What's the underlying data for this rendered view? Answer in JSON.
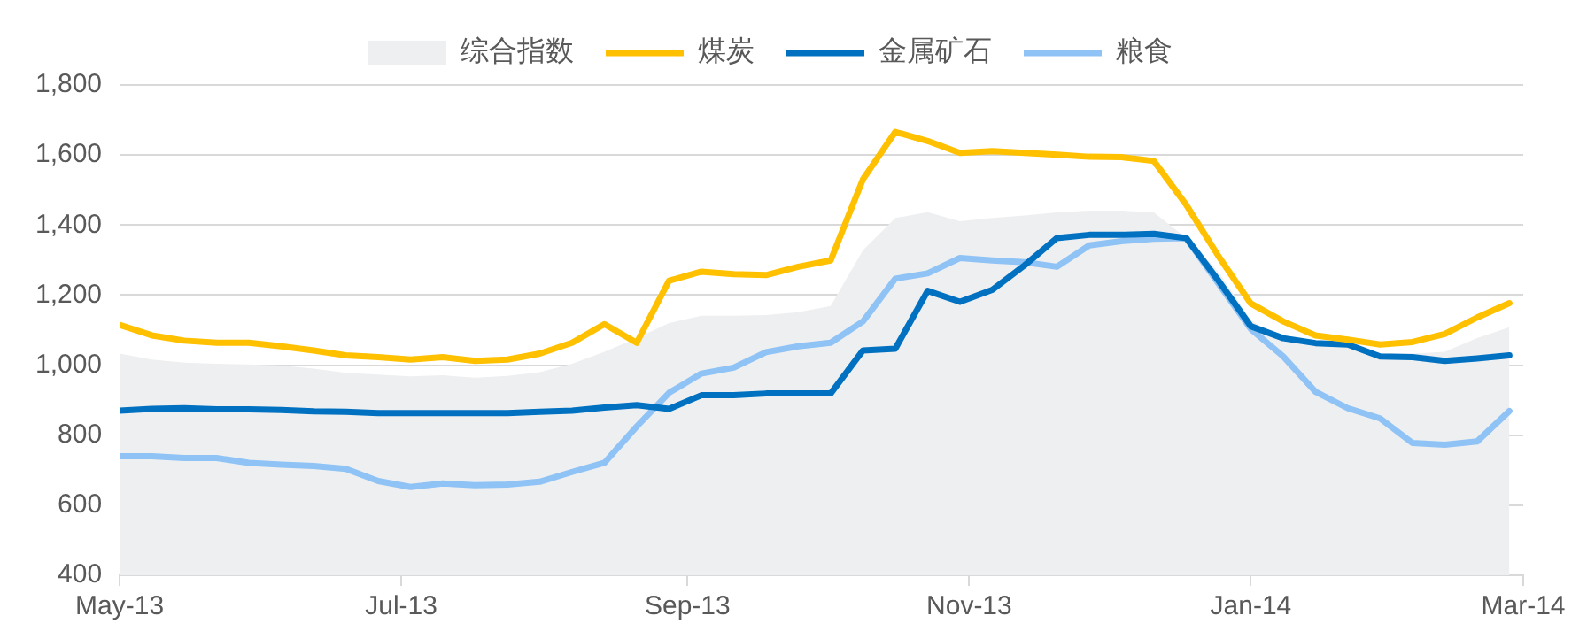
{
  "chart_data": {
    "type": "line",
    "x": [
      "2013-05-01",
      "2013-05-08",
      "2013-05-15",
      "2013-05-22",
      "2013-05-29",
      "2013-06-05",
      "2013-06-12",
      "2013-06-19",
      "2013-06-26",
      "2013-07-03",
      "2013-07-10",
      "2013-07-17",
      "2013-07-24",
      "2013-07-31",
      "2013-08-07",
      "2013-08-14",
      "2013-08-21",
      "2013-08-28",
      "2013-09-04",
      "2013-09-11",
      "2013-09-18",
      "2013-09-25",
      "2013-10-02",
      "2013-10-09",
      "2013-10-16",
      "2013-10-23",
      "2013-10-30",
      "2013-11-06",
      "2013-11-13",
      "2013-11-20",
      "2013-11-27",
      "2013-12-04",
      "2013-12-11",
      "2013-12-18",
      "2013-12-25",
      "2014-01-01",
      "2014-01-08",
      "2014-01-15",
      "2014-01-22",
      "2014-01-29",
      "2014-02-05",
      "2014-02-12",
      "2014-02-19",
      "2014-02-26"
    ],
    "series": [
      {
        "name": "综合指数",
        "type": "area",
        "color": "#eeeff1",
        "values": [
          1033,
          1016,
          1007,
          1004,
          1002,
          999,
          990,
          978,
          973,
          968,
          971,
          964,
          969,
          980,
          1004,
          1038,
          1077,
          1120,
          1141,
          1141,
          1143,
          1151,
          1169,
          1328,
          1420,
          1437,
          1411,
          1420,
          1427,
          1436,
          1441,
          1441,
          1436,
          1363,
          1267,
          1129,
          1068,
          1059,
          1051,
          1033,
          1033,
          1038,
          1077,
          1108
        ]
      },
      {
        "name": "煤炭",
        "type": "line",
        "color": "#ffc000",
        "values": [
          1115,
          1085,
          1070,
          1064,
          1064,
          1054,
          1042,
          1028,
          1023,
          1016,
          1023,
          1012,
          1016,
          1033,
          1064,
          1117,
          1064,
          1241,
          1267,
          1260,
          1257,
          1281,
          1299,
          1531,
          1666,
          1640,
          1606,
          1611,
          1606,
          1601,
          1595,
          1594,
          1583,
          1458,
          1311,
          1176,
          1125,
          1085,
          1073,
          1059,
          1066,
          1089,
          1136,
          1177
        ]
      },
      {
        "name": "金属矿石",
        "type": "line",
        "color": "#0070c0",
        "values": [
          870,
          875,
          877,
          874,
          874,
          872,
          868,
          867,
          863,
          863,
          863,
          863,
          863,
          867,
          870,
          879,
          886,
          875,
          914,
          914,
          919,
          919,
          919,
          1042,
          1047,
          1212,
          1181,
          1215,
          1285,
          1363,
          1372,
          1372,
          1375,
          1363,
          1241,
          1111,
          1077,
          1063,
          1059,
          1025,
          1023,
          1012,
          1019,
          1028
        ]
      },
      {
        "name": "粮食",
        "type": "line",
        "color": "#8fc3f5",
        "values": [
          740,
          740,
          735,
          735,
          721,
          716,
          712,
          704,
          669,
          652,
          662,
          657,
          659,
          667,
          695,
          721,
          825,
          921,
          976,
          993,
          1037,
          1054,
          1064,
          1125,
          1247,
          1262,
          1306,
          1299,
          1294,
          1281,
          1342,
          1354,
          1361,
          1363,
          1233,
          1103,
          1025,
          924,
          877,
          848,
          778,
          773,
          782,
          869
        ]
      }
    ],
    "xlim": [
      "2013-05-01",
      "2014-03-01"
    ],
    "xticks": [
      {
        "value": "2013-05-01",
        "label": "May-13"
      },
      {
        "value": "2013-07-01",
        "label": "Jul-13"
      },
      {
        "value": "2013-09-01",
        "label": "Sep-13"
      },
      {
        "value": "2013-11-01",
        "label": "Nov-13"
      },
      {
        "value": "2014-01-01",
        "label": "Jan-14"
      },
      {
        "value": "2014-03-01",
        "label": "Mar-14"
      }
    ],
    "ylim": [
      400,
      1800
    ],
    "yticks": [
      400,
      600,
      800,
      {
        "value": 1000,
        "label": "1,000"
      },
      {
        "value": 1200,
        "label": "1,200"
      },
      {
        "value": 1400,
        "label": "1,400"
      },
      {
        "value": 1600,
        "label": "1,600"
      },
      {
        "value": 1800,
        "label": "1,800"
      }
    ],
    "grid": "y",
    "legend": "top",
    "marker": "none",
    "line_style": "solid"
  }
}
